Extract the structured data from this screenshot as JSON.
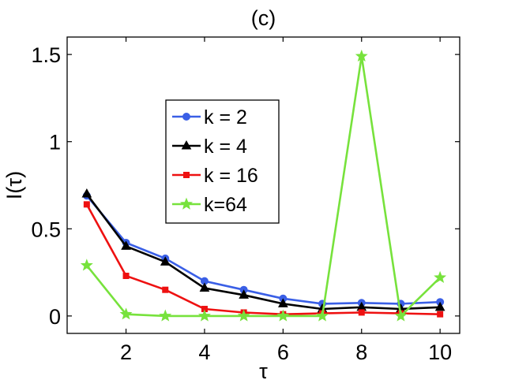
{
  "chart_data": {
    "type": "line",
    "title": "(c)",
    "xlabel": "τ",
    "ylabel": "I(τ)",
    "xlim": [
      0.5,
      10.5
    ],
    "ylim": [
      -0.1,
      1.6
    ],
    "xticks": [
      2,
      4,
      6,
      8,
      10
    ],
    "xtick_labels": [
      "2",
      "4",
      "6",
      "8",
      "10"
    ],
    "yticks": [
      0,
      0.5,
      1,
      1.5
    ],
    "ytick_labels": [
      "0",
      "0.5",
      "1",
      "1.5"
    ],
    "grid": false,
    "legend_position": "upper-left-center",
    "x": [
      1,
      2,
      3,
      4,
      5,
      6,
      7,
      8,
      9,
      10
    ],
    "series": [
      {
        "name": "k = 2",
        "color": "#3a5fe6",
        "marker": "circle",
        "values": [
          0.69,
          0.42,
          0.33,
          0.2,
          0.15,
          0.1,
          0.07,
          0.075,
          0.07,
          0.08
        ]
      },
      {
        "name": "k = 4",
        "color": "#000000",
        "marker": "triangle",
        "values": [
          0.7,
          0.4,
          0.31,
          0.16,
          0.12,
          0.07,
          0.04,
          0.05,
          0.04,
          0.05
        ]
      },
      {
        "name": "k = 16",
        "color": "#ee1111",
        "marker": "square",
        "values": [
          0.64,
          0.23,
          0.15,
          0.04,
          0.02,
          0.01,
          0.015,
          0.02,
          0.015,
          0.01
        ]
      },
      {
        "name": "k=64",
        "color": "#77e23c",
        "marker": "star",
        "values": [
          0.29,
          0.01,
          0.0,
          0.0,
          0.0,
          0.0,
          0.0,
          1.49,
          0.0,
          0.22
        ]
      }
    ]
  }
}
